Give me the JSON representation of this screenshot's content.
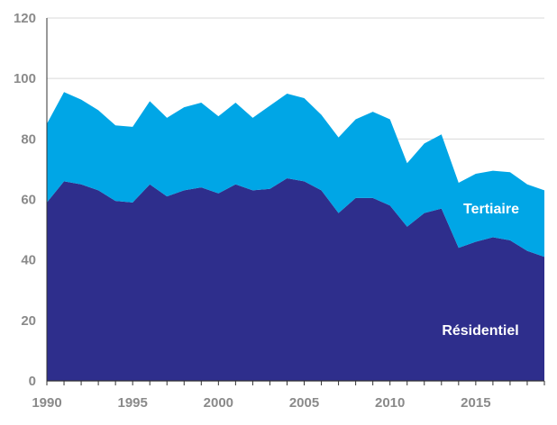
{
  "chart_data": {
    "type": "area",
    "stacked": true,
    "x": [
      1990,
      1991,
      1992,
      1993,
      1994,
      1995,
      1996,
      1997,
      1998,
      1999,
      2000,
      2001,
      2002,
      2003,
      2004,
      2005,
      2006,
      2007,
      2008,
      2009,
      2010,
      2011,
      2012,
      2013,
      2014,
      2015,
      2016,
      2017,
      2018,
      2019
    ],
    "xticks": [
      1990,
      1995,
      2000,
      2005,
      2010,
      2015
    ],
    "xlim": [
      1990,
      2019
    ],
    "ylim": [
      0,
      120
    ],
    "yticks": [
      0,
      20,
      40,
      60,
      80,
      100,
      120
    ],
    "grid": true,
    "title": "",
    "xlabel": "",
    "ylabel": "",
    "series": [
      {
        "name": "Résidentiel",
        "color": "#2e2e8c",
        "values": [
          59,
          66,
          65,
          63,
          59.5,
          59,
          65,
          61,
          63,
          64,
          62,
          65,
          63,
          63.5,
          67,
          66,
          63,
          55.5,
          60.5,
          60.5,
          58,
          51,
          55.5,
          57,
          44,
          46,
          47.5,
          46.5,
          43,
          41
        ]
      },
      {
        "name": "Tertiaire",
        "color": "#00a6e6",
        "values": [
          26,
          29.5,
          28,
          26.5,
          25,
          25,
          27.5,
          26,
          27.5,
          28,
          25.5,
          27,
          24,
          27.5,
          28,
          27.5,
          25,
          25,
          26,
          28.5,
          28.5,
          21,
          23,
          24.5,
          21.5,
          22.5,
          22,
          22.5,
          22,
          22
        ]
      }
    ],
    "labels": {
      "top": "Tertiaire",
      "bottom": "Résidentiel"
    }
  }
}
